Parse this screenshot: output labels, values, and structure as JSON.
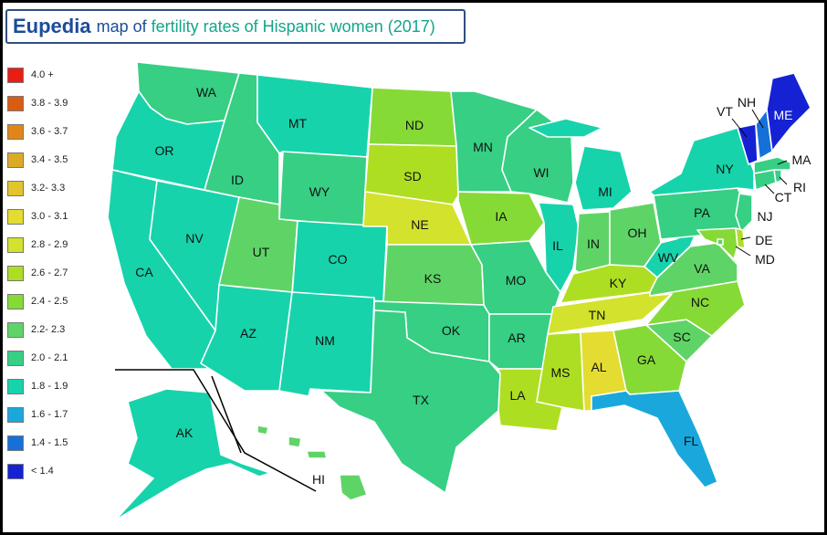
{
  "title": {
    "logo": "Eupedia",
    "part1": "map of",
    "part2": "fertility rates of Hispanic women (2017)"
  },
  "legend": [
    {
      "label": "4.0 +",
      "color": "#e81e14"
    },
    {
      "label": "3.8 - 3.9",
      "color": "#d95c12"
    },
    {
      "label": "3.6 - 3.7",
      "color": "#e08618"
    },
    {
      "label": "3.4 - 3.5",
      "color": "#dcab26"
    },
    {
      "label": "3.2- 3.3",
      "color": "#e0c52c"
    },
    {
      "label": "3.0 -  3.1",
      "color": "#e4dc30"
    },
    {
      "label": "2.8 - 2.9",
      "color": "#d3e22c"
    },
    {
      "label": "2.6 - 2.7",
      "color": "#aede22"
    },
    {
      "label": "2.4 - 2.5",
      "color": "#86da36"
    },
    {
      "label": "2.2- 2.3",
      "color": "#5fd466"
    },
    {
      "label": "2.0 -  2.1",
      "color": "#36cf84"
    },
    {
      "label": "1.8 - 1.9",
      "color": "#17d3ab"
    },
    {
      "label": "1.6 - 1.7",
      "color": "#1aa8dc"
    },
    {
      "label": "1.4 - 1.5",
      "color": "#1670da"
    },
    {
      "label": "< 1.4",
      "color": "#1522d4"
    }
  ],
  "states": {
    "WA": {
      "label": "WA",
      "color": "#36cf84"
    },
    "OR": {
      "label": "OR",
      "color": "#17d3ab"
    },
    "CA": {
      "label": "CA",
      "color": "#17d3ab"
    },
    "NV": {
      "label": "NV",
      "color": "#17d3ab"
    },
    "ID": {
      "label": "ID",
      "color": "#36cf84"
    },
    "MT": {
      "label": "MT",
      "color": "#17d3ab"
    },
    "WY": {
      "label": "WY",
      "color": "#36cf84"
    },
    "UT": {
      "label": "UT",
      "color": "#5fd466"
    },
    "CO": {
      "label": "CO",
      "color": "#17d3ab"
    },
    "AZ": {
      "label": "AZ",
      "color": "#17d3ab"
    },
    "NM": {
      "label": "NM",
      "color": "#17d3ab"
    },
    "ND": {
      "label": "ND",
      "color": "#86da36"
    },
    "SD": {
      "label": "SD",
      "color": "#aede22"
    },
    "NE": {
      "label": "NE",
      "color": "#d3e22c"
    },
    "KS": {
      "label": "KS",
      "color": "#5fd466"
    },
    "OK": {
      "label": "OK",
      "color": "#36cf84"
    },
    "TX": {
      "label": "TX",
      "color": "#36cf84"
    },
    "MN": {
      "label": "MN",
      "color": "#36cf84"
    },
    "IA": {
      "label": "IA",
      "color": "#86da36"
    },
    "MO": {
      "label": "MO",
      "color": "#36cf84"
    },
    "AR": {
      "label": "AR",
      "color": "#36cf84"
    },
    "LA": {
      "label": "LA",
      "color": "#aede22"
    },
    "WI": {
      "label": "WI",
      "color": "#36cf84"
    },
    "IL": {
      "label": "IL",
      "color": "#17d3ab"
    },
    "MI": {
      "label": "MI",
      "color": "#17d3ab"
    },
    "IN": {
      "label": "IN",
      "color": "#5fd466"
    },
    "OH": {
      "label": "OH",
      "color": "#5fd466"
    },
    "KY": {
      "label": "KY",
      "color": "#aede22"
    },
    "TN": {
      "label": "TN",
      "color": "#d3e22c"
    },
    "MS": {
      "label": "MS",
      "color": "#aede22"
    },
    "AL": {
      "label": "AL",
      "color": "#e4dc30"
    },
    "GA": {
      "label": "GA",
      "color": "#86da36"
    },
    "FL": {
      "label": "FL",
      "color": "#1aa8dc"
    },
    "SC": {
      "label": "SC",
      "color": "#5fd466"
    },
    "NC": {
      "label": "NC",
      "color": "#86da36"
    },
    "VA": {
      "label": "VA",
      "color": "#5fd466"
    },
    "WV": {
      "label": "WV",
      "color": "#17d3ab"
    },
    "PA": {
      "label": "PA",
      "color": "#36cf84"
    },
    "NY": {
      "label": "NY",
      "color": "#17d3ab"
    },
    "NJ": {
      "label": "NJ",
      "color": "#36cf84"
    },
    "DE": {
      "label": "DE",
      "color": "#aede22"
    },
    "MD": {
      "label": "MD",
      "color": "#86da36"
    },
    "DC": {
      "label": "",
      "color": "#5fd466"
    },
    "CT": {
      "label": "CT",
      "color": "#36cf84"
    },
    "RI": {
      "label": "RI",
      "color": "#36cf84"
    },
    "MA": {
      "label": "MA",
      "color": "#36cf84"
    },
    "VT": {
      "label": "VT",
      "color": "#1522d4"
    },
    "NH": {
      "label": "NH",
      "color": "#1670da"
    },
    "ME": {
      "label": "ME",
      "color": "#1522d4"
    },
    "AK": {
      "label": "AK",
      "color": "#17d3ab"
    },
    "HI": {
      "label": "HI",
      "color": "#5fd466"
    }
  }
}
